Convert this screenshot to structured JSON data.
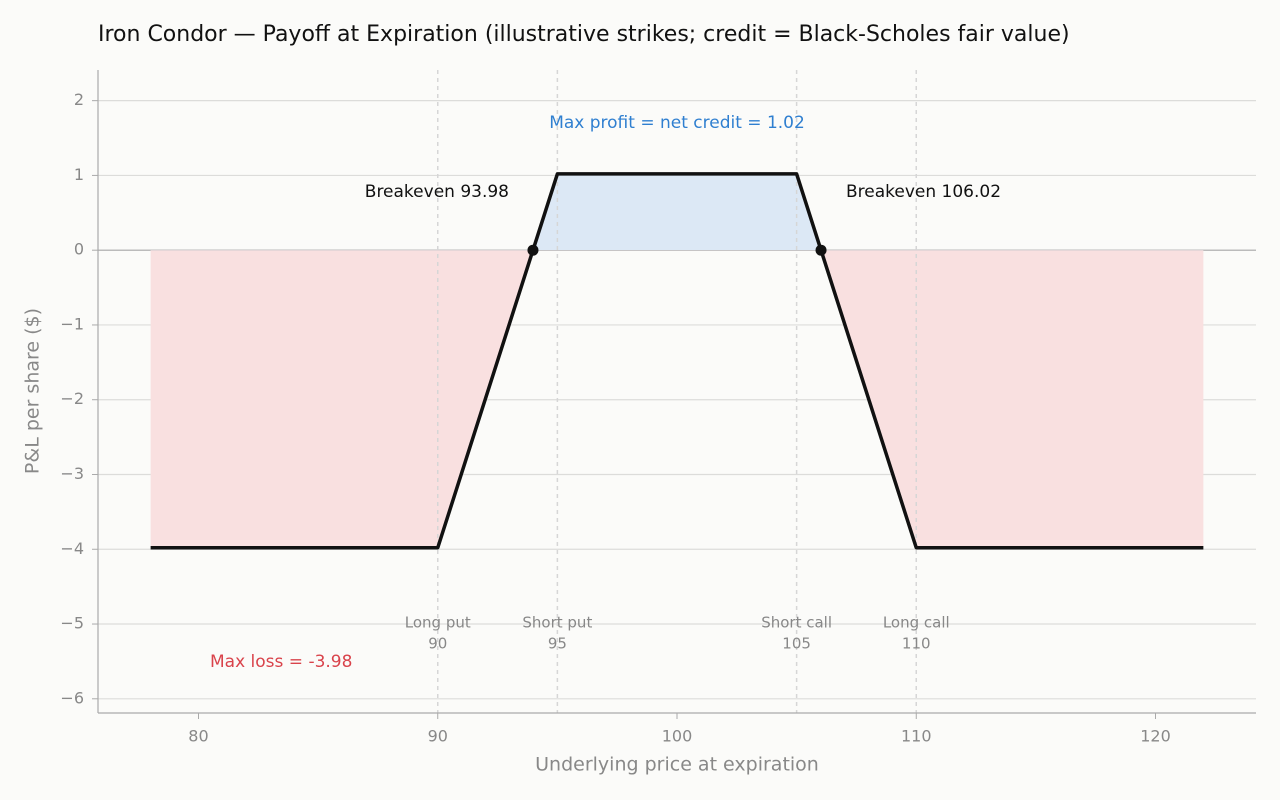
{
  "chart_data": {
    "type": "line",
    "title": "Iron Condor — Payoff at Expiration (illustrative strikes; credit = Black-Scholes fair value)",
    "x_label": "Underlying price at expiration",
    "y_label": "P&L per share ($)",
    "x": [
      78,
      90,
      93.98,
      95,
      105,
      106.02,
      110,
      122
    ],
    "values": [
      -3.98,
      -3.98,
      0,
      1.02,
      1.02,
      0,
      -3.98,
      -3.98
    ],
    "color": "#111111",
    "profit_color": "#dce8f5",
    "loss_color": "#f9e0e0",
    "breakevens": {
      "x": [
        93.98,
        106.02
      ],
      "values": [
        0,
        0
      ]
    },
    "strikes": [
      {
        "label": "Long put",
        "value": 90
      },
      {
        "label": "Short put",
        "value": 95
      },
      {
        "label": "Short call",
        "value": 105
      },
      {
        "label": "Long call",
        "value": 110
      }
    ],
    "annotations": [
      {
        "text": "Max profit = net credit = 1.02",
        "color": "#2f7fd0"
      },
      {
        "text": "Breakeven 93.98",
        "color": "#111111"
      },
      {
        "text": "Breakeven 106.02",
        "color": "#111111"
      },
      {
        "text": "Max loss = -3.98",
        "color": "#d9434b"
      }
    ],
    "xlim": [
      75.8,
      124.2
    ],
    "ylim": [
      -6.19,
      2.41
    ],
    "xticks": [
      80,
      90,
      100,
      110,
      120
    ],
    "yticks": [
      {
        "value": -6,
        "label": "−6"
      },
      {
        "value": -5,
        "label": "−5"
      },
      {
        "value": -4,
        "label": "−4"
      },
      {
        "value": -3,
        "label": "−3"
      },
      {
        "value": -2,
        "label": "−2"
      },
      {
        "value": -1,
        "label": "−1"
      },
      0,
      1,
      2
    ],
    "grid": true
  }
}
